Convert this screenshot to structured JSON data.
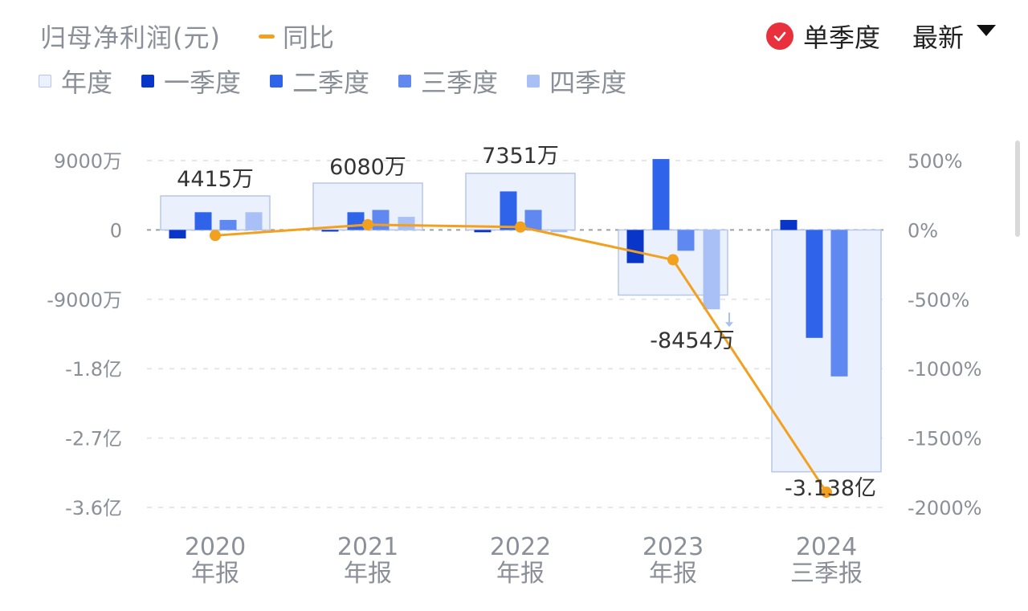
{
  "header": {
    "title": "归母净利润(元)",
    "yoy_legend": "同比",
    "quarterly_toggle": "单季度",
    "sort_label": "最新"
  },
  "legend": [
    "年度",
    "一季度",
    "二季度",
    "三季度",
    "四季度"
  ],
  "colors": {
    "annual": "#eaf0fc",
    "annual_border": "#b7c7ea",
    "q1": "#0a35c9",
    "q2": "#2f63ea",
    "q3": "#5f88f0",
    "q4": "#a9c0f6",
    "yoy": "#f2a01e",
    "check": "#e8313c"
  },
  "chart_data": {
    "type": "bar",
    "categories": [
      [
        "2020",
        "年报"
      ],
      [
        "2021",
        "年报"
      ],
      [
        "2022",
        "年报"
      ],
      [
        "2023",
        "年报"
      ],
      [
        "2024",
        "三季报"
      ]
    ],
    "y_left_ticks": [
      "9000万",
      "0",
      "-9000万",
      "-1.8亿",
      "-2.7亿",
      "-3.6亿"
    ],
    "y_left_range_wan": [
      -36000,
      9000
    ],
    "y_right_ticks": [
      "500%",
      "0%",
      "-500%",
      "-1000%",
      "-1500%",
      "-2000%"
    ],
    "y_right_range_pct": [
      -2000,
      500
    ],
    "annual_values_wan": [
      4415,
      6080,
      7351,
      -8454,
      -31380
    ],
    "annual_labels": [
      "4415万",
      "6080万",
      "7351万",
      "-8454万",
      "-3.138亿"
    ],
    "series": [
      {
        "name": "一季度",
        "values": [
          -1100,
          -200,
          -300,
          -4300,
          1300
        ]
      },
      {
        "name": "二季度",
        "values": [
          2300,
          2300,
          5000,
          9200,
          -14000
        ]
      },
      {
        "name": "三季度",
        "values": [
          1300,
          2600,
          2600,
          -2700,
          -19000
        ]
      },
      {
        "name": "四季度",
        "values": [
          2300,
          1700,
          -300,
          -10300,
          null
        ]
      }
    ],
    "yoy_pct": [
      -40,
      38,
      21,
      -215,
      -1890
    ],
    "grid": true
  }
}
